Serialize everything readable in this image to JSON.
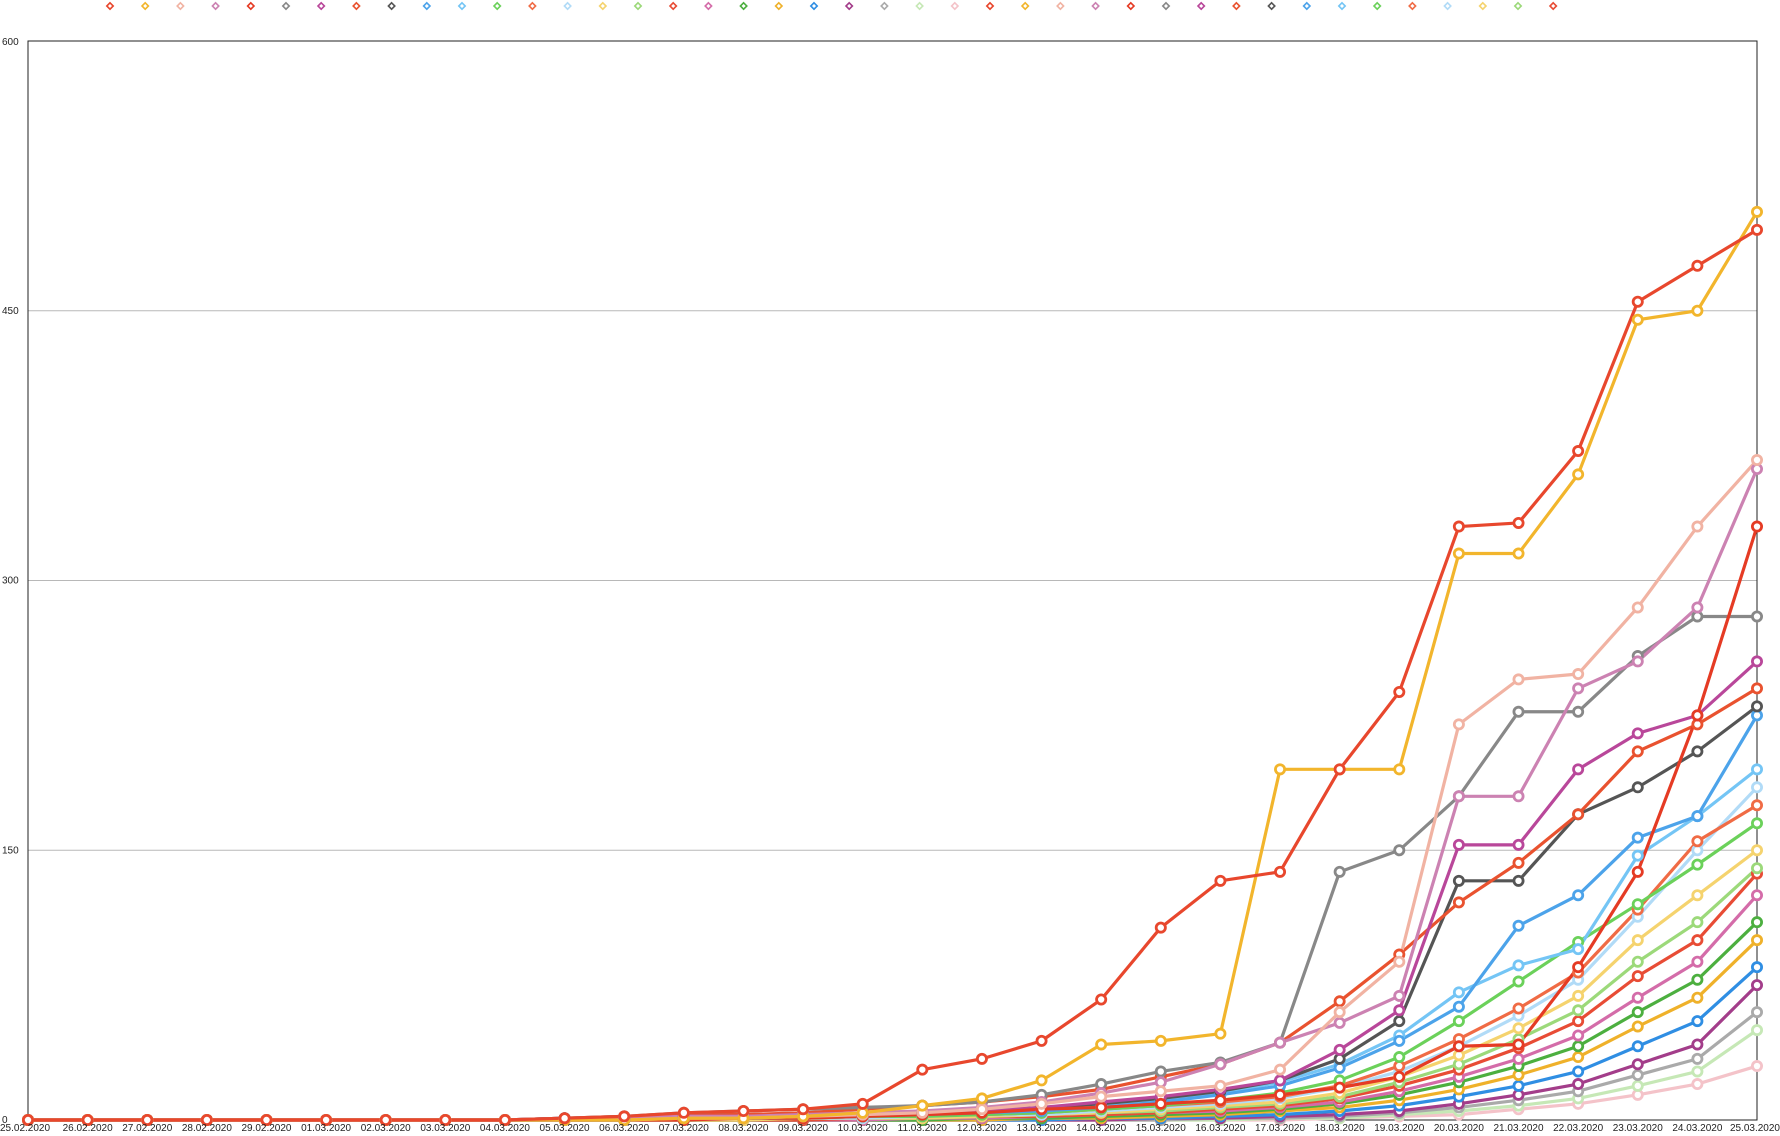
{
  "chart_data": {
    "type": "line",
    "title": "",
    "xlabel": "",
    "ylabel": "",
    "ylim": [
      0,
      600
    ],
    "yticks": [
      0,
      150,
      300,
      450,
      600
    ],
    "grid": "horizontal",
    "legend_position": "top",
    "categories": [
      "25.02.2020",
      "26.02.2020",
      "27.02.2020",
      "28.02.2020",
      "29.02.2020",
      "01.03.2020",
      "02.03.2020",
      "03.03.2020",
      "04.03.2020",
      "05.03.2020",
      "06.03.2020",
      "07.03.2020",
      "08.03.2020",
      "09.03.2020",
      "10.03.2020",
      "11.03.2020",
      "12.03.2020",
      "13.03.2020",
      "14.03.2020",
      "15.03.2020",
      "16.03.2020",
      "17.03.2020",
      "18.03.2020",
      "19.03.2020",
      "20.03.2020",
      "21.03.2020",
      "22.03.2020",
      "23.03.2020",
      "24.03.2020",
      "25.03.2020"
    ],
    "series": [
      {
        "color": "#e8472d",
        "values": [
          0,
          0,
          0,
          0,
          0,
          0,
          0,
          0,
          0,
          1,
          2,
          4,
          5,
          6,
          9,
          28,
          34,
          44,
          67,
          107,
          133,
          138,
          195,
          238,
          330,
          332,
          372,
          455,
          475,
          495
        ]
      },
      {
        "color": "#f2b52c",
        "values": [
          0,
          0,
          0,
          0,
          0,
          0,
          0,
          0,
          0,
          0,
          0,
          1,
          1,
          2,
          4,
          8,
          12,
          22,
          42,
          44,
          48,
          195,
          195,
          195,
          315,
          315,
          359,
          445,
          450,
          505
        ]
      },
      {
        "color": "#f1b3a3",
        "values": [
          0,
          0,
          0,
          0,
          0,
          0,
          0,
          0,
          0,
          0,
          0,
          1,
          1,
          2,
          3,
          4,
          6,
          9,
          13,
          16,
          19,
          28,
          60,
          88,
          220,
          245,
          248,
          285,
          330,
          367
        ]
      },
      {
        "color": "#cc82b2",
        "values": [
          0,
          0,
          0,
          0,
          0,
          0,
          0,
          0,
          0,
          0,
          1,
          2,
          2,
          3,
          4,
          5,
          7,
          10,
          15,
          21,
          31,
          43,
          54,
          69,
          180,
          180,
          240,
          255,
          285,
          362
        ]
      },
      {
        "color": "#e53b24",
        "values": [
          0,
          0,
          0,
          0,
          0,
          0,
          0,
          0,
          0,
          0,
          0,
          0,
          1,
          1,
          2,
          3,
          4,
          6,
          7,
          9,
          11,
          14,
          18,
          24,
          41,
          42,
          85,
          138,
          225,
          330
        ]
      },
      {
        "color": "#888888",
        "values": [
          0,
          0,
          0,
          0,
          0,
          0,
          0,
          0,
          0,
          1,
          2,
          4,
          5,
          6,
          7,
          8,
          10,
          14,
          20,
          27,
          32,
          43,
          138,
          150,
          180,
          227,
          227,
          258,
          280,
          280
        ]
      },
      {
        "color": "#b9479a",
        "values": [
          0,
          0,
          0,
          0,
          0,
          0,
          0,
          0,
          0,
          1,
          1,
          2,
          2,
          3,
          3,
          4,
          5,
          7,
          10,
          13,
          17,
          22,
          39,
          61,
          153,
          153,
          195,
          215,
          225,
          255
        ]
      },
      {
        "color": "#e9522f",
        "values": [
          0,
          0,
          0,
          0,
          0,
          0,
          0,
          0,
          0,
          1,
          2,
          3,
          3,
          4,
          6,
          8,
          10,
          13,
          17,
          24,
          31,
          43,
          66,
          92,
          121,
          143,
          170,
          205,
          220,
          240
        ]
      },
      {
        "color": "#555555",
        "values": [
          0,
          0,
          0,
          0,
          0,
          0,
          0,
          0,
          0,
          1,
          1,
          2,
          2,
          3,
          3,
          4,
          5,
          7,
          9,
          12,
          16,
          22,
          34,
          55,
          133,
          133,
          170,
          185,
          205,
          230
        ]
      },
      {
        "color": "#4ca3ea",
        "values": [
          0,
          0,
          0,
          0,
          0,
          0,
          0,
          0,
          0,
          0,
          0,
          1,
          1,
          1,
          2,
          3,
          4,
          5,
          7,
          10,
          14,
          19,
          29,
          44,
          63,
          108,
          125,
          157,
          169,
          225
        ]
      },
      {
        "color": "#74c5f5",
        "values": [
          0,
          0,
          0,
          0,
          0,
          0,
          0,
          0,
          0,
          0,
          1,
          1,
          2,
          2,
          3,
          4,
          5,
          6,
          8,
          11,
          15,
          21,
          31,
          47,
          71,
          86,
          95,
          147,
          169,
          195
        ]
      },
      {
        "color": "#6bd15a",
        "values": [
          0,
          0,
          0,
          0,
          0,
          0,
          0,
          0,
          0,
          0,
          0,
          1,
          1,
          1,
          2,
          2,
          3,
          4,
          6,
          8,
          11,
          15,
          22,
          35,
          55,
          77,
          99,
          120,
          142,
          165
        ]
      },
      {
        "color": "#f06b45",
        "values": [
          0,
          0,
          0,
          0,
          0,
          0,
          0,
          0,
          0,
          0,
          0,
          1,
          1,
          1,
          2,
          3,
          3,
          4,
          6,
          8,
          10,
          13,
          19,
          30,
          45,
          62,
          82,
          117,
          155,
          175
        ]
      },
      {
        "color": "#b1dbf7",
        "values": [
          0,
          0,
          0,
          0,
          0,
          0,
          0,
          0,
          0,
          0,
          0,
          0,
          1,
          1,
          1,
          2,
          3,
          3,
          5,
          7,
          9,
          12,
          18,
          27,
          41,
          58,
          78,
          113,
          150,
          185
        ]
      },
      {
        "color": "#f5d36e",
        "values": [
          0,
          0,
          0,
          0,
          0,
          0,
          0,
          0,
          0,
          0,
          0,
          0,
          0,
          1,
          1,
          1,
          2,
          3,
          4,
          6,
          8,
          10,
          15,
          24,
          36,
          51,
          69,
          100,
          125,
          150
        ]
      },
      {
        "color": "#9cd97a",
        "values": [
          0,
          0,
          0,
          0,
          0,
          0,
          0,
          0,
          0,
          0,
          0,
          0,
          0,
          1,
          1,
          1,
          2,
          3,
          4,
          5,
          7,
          9,
          13,
          21,
          31,
          45,
          61,
          88,
          110,
          140
        ]
      },
      {
        "color": "#e84c35",
        "values": [
          0,
          0,
          0,
          0,
          0,
          0,
          0,
          0,
          0,
          0,
          0,
          0,
          0,
          0,
          1,
          1,
          2,
          2,
          3,
          4,
          6,
          8,
          12,
          19,
          28,
          40,
          55,
          80,
          100,
          137
        ]
      },
      {
        "color": "#d46ca9",
        "values": [
          0,
          0,
          0,
          0,
          0,
          0,
          0,
          0,
          0,
          0,
          0,
          0,
          0,
          0,
          0,
          1,
          1,
          2,
          3,
          4,
          5,
          7,
          10,
          16,
          24,
          34,
          47,
          68,
          88,
          125
        ]
      },
      {
        "color": "#4caf3f",
        "values": [
          0,
          0,
          0,
          0,
          0,
          0,
          0,
          0,
          0,
          0,
          0,
          0,
          0,
          0,
          0,
          0,
          1,
          1,
          2,
          3,
          4,
          6,
          9,
          14,
          21,
          30,
          41,
          60,
          78,
          110
        ]
      },
      {
        "color": "#efb12a",
        "values": [
          0,
          0,
          0,
          0,
          0,
          0,
          0,
          0,
          0,
          0,
          0,
          0,
          0,
          0,
          0,
          0,
          0,
          1,
          1,
          2,
          3,
          5,
          7,
          11,
          17,
          25,
          35,
          52,
          68,
          100
        ]
      },
      {
        "color": "#2f8ee3",
        "values": [
          0,
          0,
          0,
          0,
          0,
          0,
          0,
          0,
          0,
          0,
          0,
          0,
          0,
          0,
          0,
          0,
          0,
          0,
          1,
          1,
          2,
          3,
          5,
          8,
          13,
          19,
          27,
          41,
          55,
          85
        ]
      },
      {
        "color": "#a33d8a",
        "values": [
          0,
          0,
          0,
          0,
          0,
          0,
          0,
          0,
          0,
          0,
          0,
          0,
          0,
          0,
          0,
          0,
          0,
          0,
          0,
          1,
          1,
          2,
          3,
          5,
          9,
          14,
          20,
          31,
          42,
          75
        ]
      },
      {
        "color": "#aaaaaa",
        "values": [
          0,
          0,
          0,
          0,
          0,
          0,
          0,
          0,
          0,
          0,
          0,
          0,
          0,
          0,
          0,
          0,
          0,
          0,
          0,
          0,
          1,
          1,
          2,
          4,
          7,
          11,
          16,
          25,
          34,
          60
        ]
      },
      {
        "color": "#c6e8b6",
        "values": [
          0,
          0,
          0,
          0,
          0,
          0,
          0,
          0,
          0,
          0,
          0,
          0,
          0,
          0,
          0,
          0,
          0,
          0,
          0,
          0,
          0,
          1,
          1,
          3,
          5,
          8,
          12,
          19,
          27,
          50
        ]
      },
      {
        "color": "#f4c3c9",
        "values": [
          0,
          0,
          0,
          0,
          0,
          0,
          0,
          0,
          0,
          0,
          0,
          0,
          0,
          0,
          0,
          0,
          0,
          0,
          0,
          0,
          0,
          0,
          1,
          2,
          3,
          6,
          9,
          14,
          20,
          30
        ]
      }
    ]
  }
}
